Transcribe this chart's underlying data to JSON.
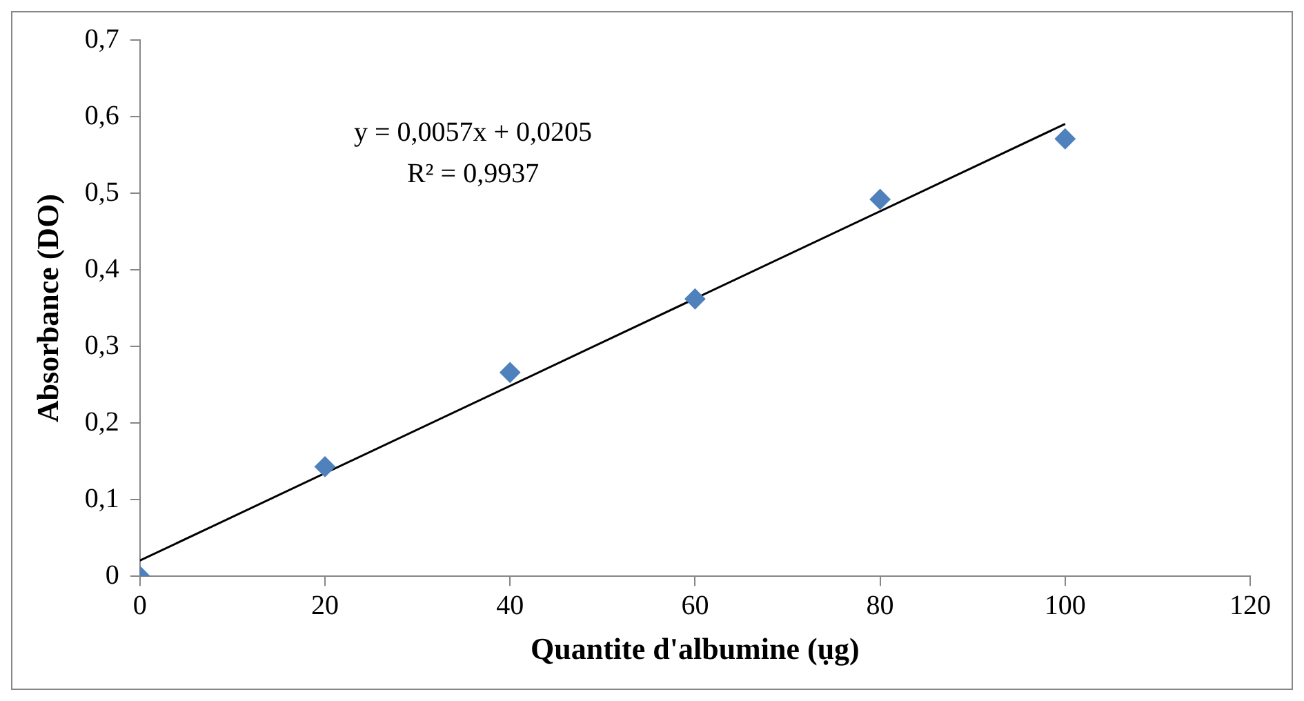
{
  "chart_data": {
    "type": "scatter",
    "xlabel": "Quantite d'albumine (ụg)",
    "ylabel": "Absorbance (DO)",
    "annotations": [
      "y = 0,0057x + 0,0205",
      "R² = 0,9937"
    ],
    "xlim": [
      0,
      120
    ],
    "xticks": [
      0,
      20,
      40,
      60,
      80,
      100,
      120
    ],
    "ylim": [
      0,
      0.7
    ],
    "yticks": [
      0,
      {
        "value": 0.1,
        "label": "0,1"
      },
      {
        "value": 0.2,
        "label": "0,2"
      },
      {
        "value": 0.3,
        "label": "0,3"
      },
      {
        "value": 0.4,
        "label": "0,4"
      },
      {
        "value": 0.5,
        "label": "0,5"
      },
      {
        "value": 0.6,
        "label": "0,6"
      },
      {
        "value": 0.7,
        "label": "0,7"
      }
    ],
    "marker": "diamond",
    "legend": false,
    "series": [
      {
        "color": "#4f81bd",
        "x": [
          0,
          20,
          40,
          60,
          80,
          100
        ],
        "values": [
          0,
          0.143,
          0.266,
          0.362,
          0.492,
          0.571
        ]
      },
      {
        "type": "line",
        "color": "#000000",
        "marker": "none",
        "line_style": "solid",
        "x": [
          0,
          100
        ],
        "values": [
          0.0205,
          0.5905
        ]
      }
    ]
  }
}
